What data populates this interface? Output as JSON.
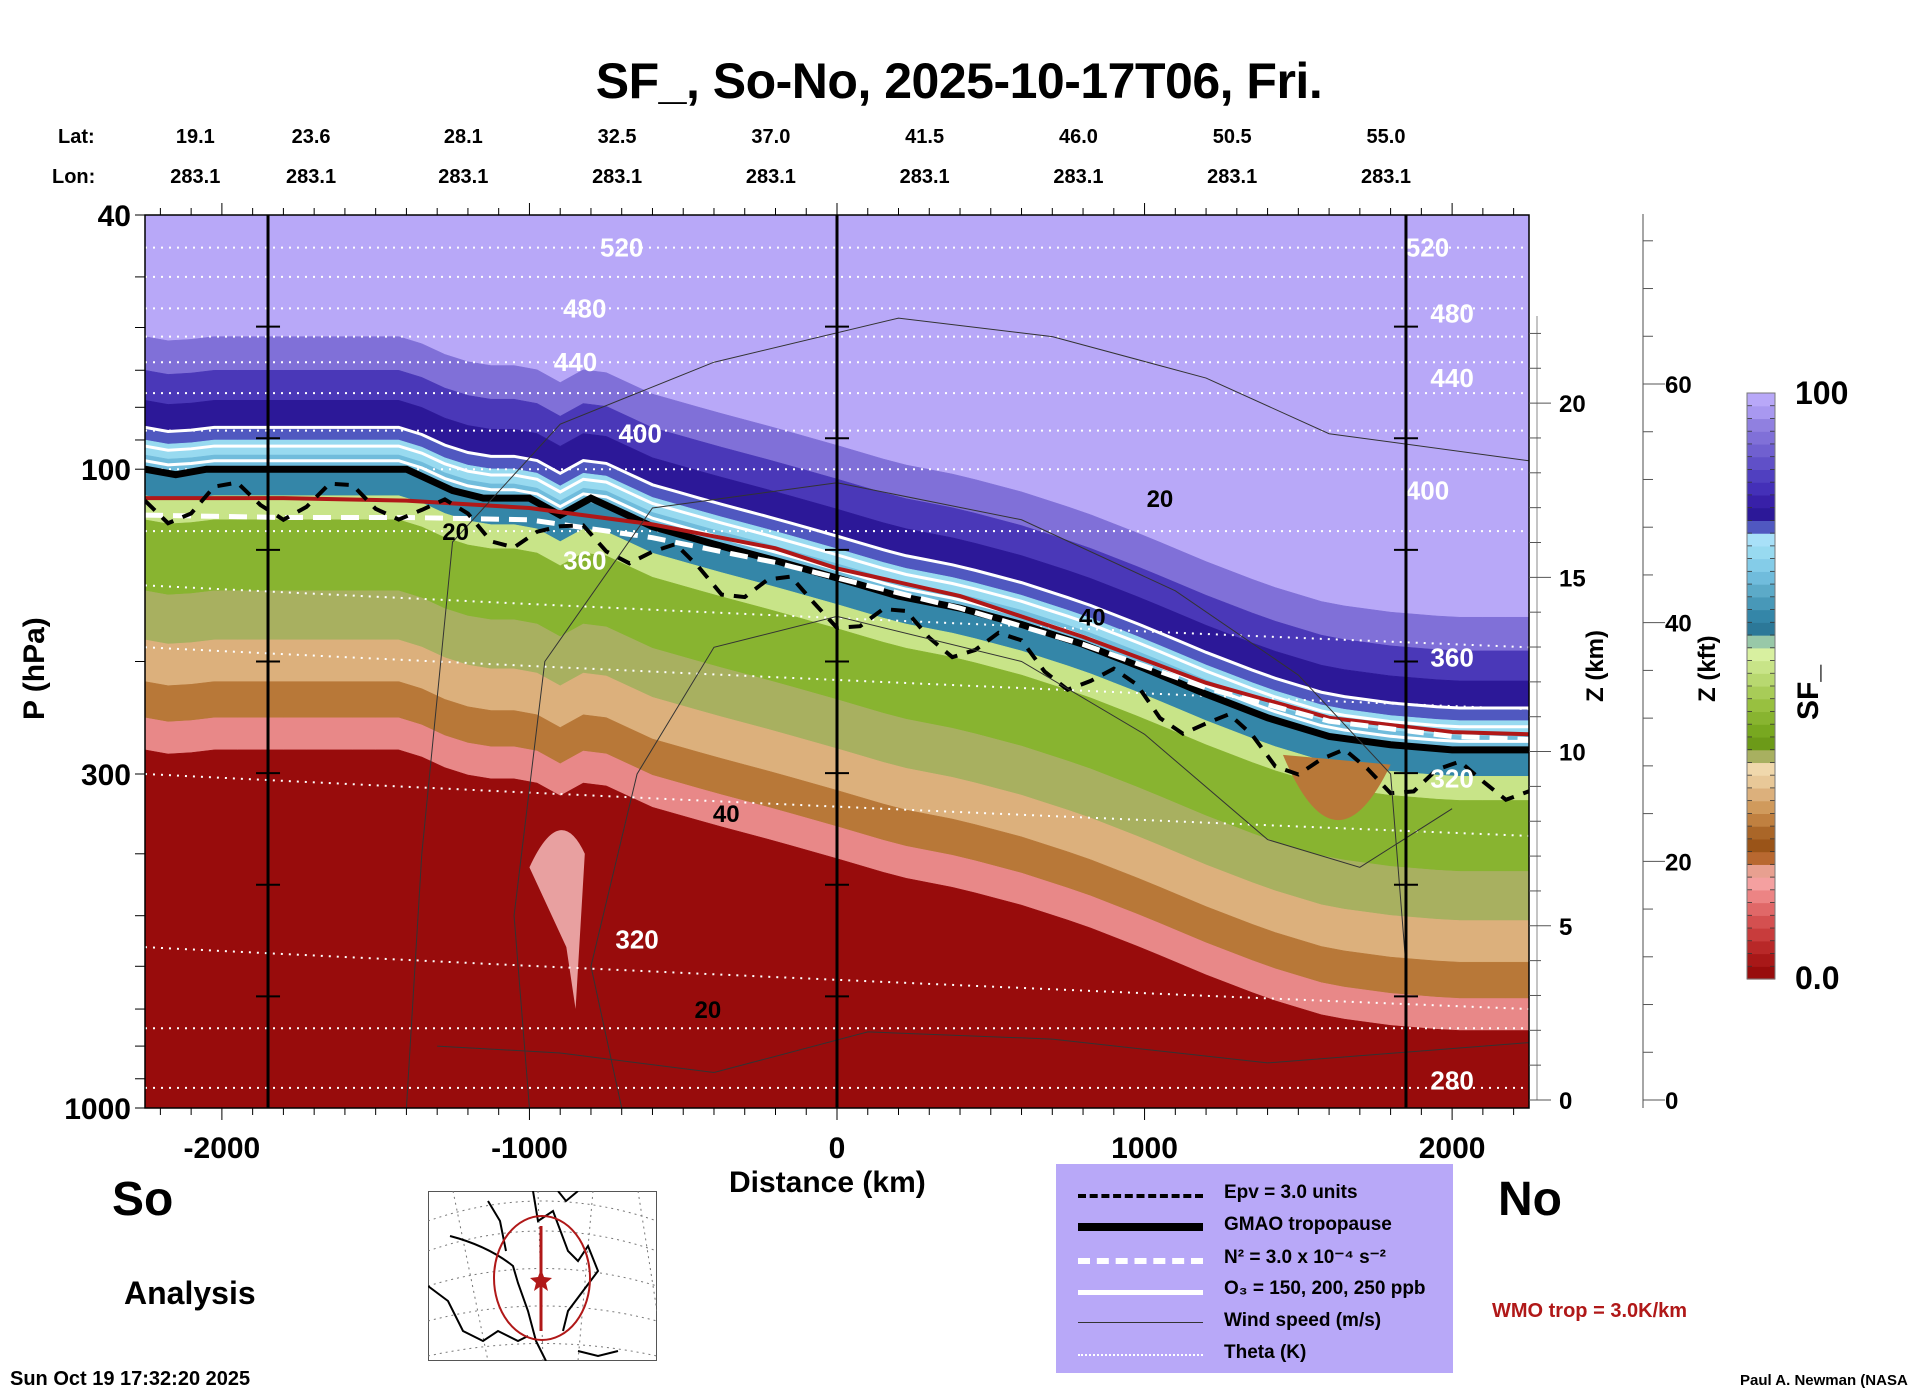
{
  "chart_data": {
    "type": "heatmap",
    "title": "SF_, So-No, 2025-10-17T06, Fri.",
    "xlabel": "Distance (km)",
    "ylabel": "P (hPa)",
    "right_axis_1_label": "Z (km)",
    "right_axis_2_label": "Z (kft)",
    "colorbar_label": "SF_",
    "xlim": [
      -2250,
      2250
    ],
    "ylim": [
      1000,
      40
    ],
    "y_scale": "log",
    "x_ticks": [
      "-2000",
      "-1000",
      "0",
      "1000",
      "2000"
    ],
    "x_tick_values": [
      -2000,
      -1000,
      0,
      1000,
      2000
    ],
    "y_ticks": [
      "40",
      "100",
      "300",
      "1000"
    ],
    "y_tick_values": [
      40,
      100,
      300,
      1000
    ],
    "z_km_ticks": [
      "0",
      "5",
      "10",
      "15",
      "20"
    ],
    "z_kft_ticks": [
      "0",
      "20",
      "40",
      "60"
    ],
    "colorbar_min": "0.0",
    "colorbar_max": "100",
    "colorbar_colors": [
      "#980c0c",
      "#a81818",
      "#b82828",
      "#c83c3c",
      "#d45050",
      "#e06868",
      "#ec8484",
      "#f4a0a0",
      "#e8a090",
      "#b86830",
      "#9a5418",
      "#aa6628",
      "#c08040",
      "#d09a5c",
      "#dcb07c",
      "#e8c898",
      "#f0d8ac",
      "#a8b060",
      "#6c9a18",
      "#78a820",
      "#88b430",
      "#98c040",
      "#a8cc58",
      "#b8d870",
      "#c8e488",
      "#d8f0a0",
      "#98c8a8",
      "#2c7898",
      "#3486a8",
      "#4898b8",
      "#5caac8",
      "#70bcdc",
      "#84cce8",
      "#98daf0",
      "#a8e0f8",
      "#5058c0",
      "#2c1898",
      "#3820a8",
      "#4430b8",
      "#5040c0",
      "#6050c8",
      "#7060d0",
      "#8070d8",
      "#9080e0",
      "#a898f0",
      "#b8a8f8"
    ],
    "vertical_markers_km": [
      -1850,
      0,
      1850
    ],
    "lat_labels": [
      "19.1",
      "23.6",
      "28.1",
      "32.5",
      "37.0",
      "41.5",
      "46.0",
      "50.5",
      "55.0"
    ],
    "lon_labels": [
      "283.1",
      "283.1",
      "283.1",
      "283.1",
      "283.1",
      "283.1",
      "283.1",
      "283.1",
      "283.1"
    ],
    "lat_lon_positions_km": [
      -2210,
      -1710,
      -1215,
      -715,
      -215,
      285,
      785,
      1285,
      1785
    ],
    "theta_contour_labels": [
      {
        "value": "520",
        "x": -700,
        "p": 45
      },
      {
        "value": "480",
        "x": -820,
        "p": 56
      },
      {
        "value": "440",
        "x": -850,
        "p": 68
      },
      {
        "value": "400",
        "x": -640,
        "p": 88
      },
      {
        "value": "360",
        "x": -820,
        "p": 139
      },
      {
        "value": "320",
        "x": -650,
        "p": 545
      },
      {
        "value": "520",
        "x": 1920,
        "p": 45
      },
      {
        "value": "480",
        "x": 2000,
        "p": 57
      },
      {
        "value": "440",
        "x": 2000,
        "p": 72
      },
      {
        "value": "400",
        "x": 1920,
        "p": 108
      },
      {
        "value": "360",
        "x": 2000,
        "p": 197
      },
      {
        "value": "320",
        "x": 2000,
        "p": 305
      },
      {
        "value": "280",
        "x": 2000,
        "p": 905
      }
    ],
    "wind_contour_labels": [
      {
        "value": "20",
        "x": -1240,
        "p": 125
      },
      {
        "value": "20",
        "x": 1050,
        "p": 111
      },
      {
        "value": "40",
        "x": 830,
        "p": 170
      },
      {
        "value": "40",
        "x": -360,
        "p": 345
      },
      {
        "value": "20",
        "x": -420,
        "p": 700
      }
    ],
    "series": [
      {
        "name": "GMAO tropopause",
        "style": "thick-solid",
        "color": "#000000",
        "x": [
          -2250,
          -2150,
          -2050,
          -1850,
          -1400,
          -1250,
          -1150,
          -1000,
          -900,
          -800,
          -600,
          -400,
          -200,
          0,
          200,
          400,
          600,
          800,
          1000,
          1200,
          1400,
          1600,
          1800,
          2000,
          2250
        ],
        "p": [
          100,
          102,
          100,
          100,
          100,
          108,
          111,
          111,
          118,
          111,
          123,
          131,
          139,
          148,
          158,
          165,
          175,
          188,
          205,
          225,
          245,
          262,
          270,
          275,
          275
        ]
      },
      {
        "name": "WMO tropopause",
        "style": "solid",
        "color": "#b01818",
        "x": [
          -2250,
          -1800,
          -1400,
          -1000,
          -600,
          -200,
          0,
          400,
          800,
          1200,
          1600,
          2000,
          2250
        ],
        "p": [
          111,
          111,
          112,
          115,
          122,
          133,
          143,
          158,
          183,
          216,
          245,
          258,
          260
        ]
      },
      {
        "name": "N2 = 3.0 x 10-4 s-2",
        "style": "white-dashed",
        "color": "#ffffff",
        "x": [
          -2250,
          -1800,
          -1400,
          -1000,
          -600,
          -200,
          0,
          400,
          800,
          1200,
          1600,
          2000,
          2250
        ],
        "p": [
          118,
          119,
          119,
          120,
          128,
          140,
          148,
          165,
          188,
          220,
          248,
          262,
          265
        ]
      }
    ]
  },
  "lat_prefix": "Lat:",
  "lon_prefix": "Lon:",
  "labels": {
    "south": "So",
    "north": "No",
    "analysis": "Analysis",
    "timestamp": "Sun Oct 19 17:32:20 2025",
    "wmo": "WMO trop = 3.0K/km",
    "credit": "Paul A. Newman (NASA"
  },
  "legend": [
    {
      "key": "epv",
      "label": "Epv = 3.0 units"
    },
    {
      "key": "gmao",
      "label": "GMAO tropopause"
    },
    {
      "key": "n2",
      "label_html": "N² = 3.0 x 10⁻⁴ s⁻²",
      "label": "N² = 3.0 x 10⁻⁴ s⁻²"
    },
    {
      "key": "o3",
      "label": "O₃ = 150, 200, 250 ppb"
    },
    {
      "key": "wind",
      "label": "Wind speed (m/s)"
    },
    {
      "key": "theta",
      "label": "Theta (K)"
    }
  ],
  "colors": {
    "legend_bg": "#b8a8f8",
    "wmo_red": "#b01818",
    "plot_top": "#b8a8f8",
    "plot_bottom": "#980c0c"
  }
}
